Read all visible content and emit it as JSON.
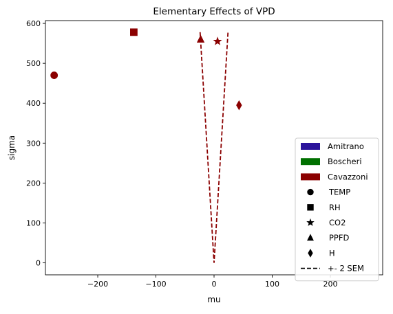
{
  "chart_data": {
    "type": "scatter",
    "title": "Elementary Effects of VPD",
    "xlabel": "mu",
    "ylabel": "sigma",
    "xlim": [
      -290,
      290
    ],
    "ylim": [
      -30,
      607
    ],
    "x_ticks": [
      -200,
      -100,
      0,
      100,
      200
    ],
    "y_ticks": [
      0,
      100,
      200,
      300,
      400,
      500,
      600
    ],
    "grid": false,
    "legend_position": "lower-right",
    "models": [
      {
        "name": "Amitrano",
        "color": "#2b139b"
      },
      {
        "name": "Boscheri",
        "color": "#007000"
      },
      {
        "name": "Cavazzoni",
        "color": "#8b0000"
      }
    ],
    "variables": [
      {
        "name": "TEMP",
        "marker": "circle"
      },
      {
        "name": "RH",
        "marker": "square"
      },
      {
        "name": "CO2",
        "marker": "star"
      },
      {
        "name": "PPFD",
        "marker": "triangle"
      },
      {
        "name": "H",
        "marker": "diamond"
      }
    ],
    "sem_label": "+- 2 SEM",
    "points": [
      {
        "variable": "TEMP",
        "model": "Cavazzoni",
        "mu": -275,
        "sigma": 470
      },
      {
        "variable": "RH",
        "model": "Cavazzoni",
        "mu": -138,
        "sigma": 578
      },
      {
        "variable": "CO2",
        "model": "Cavazzoni",
        "mu": 6,
        "sigma": 555
      },
      {
        "variable": "PPFD",
        "model": "Cavazzoni",
        "mu": -23,
        "sigma": 560
      },
      {
        "variable": "H",
        "model": "Cavazzoni",
        "mu": 43,
        "sigma": 395
      }
    ],
    "sem_lines": [
      {
        "model": "Cavazzoni",
        "color": "#8b0000",
        "points": [
          [
            -24,
            578
          ],
          [
            0,
            0
          ],
          [
            24,
            578
          ]
        ]
      }
    ]
  }
}
